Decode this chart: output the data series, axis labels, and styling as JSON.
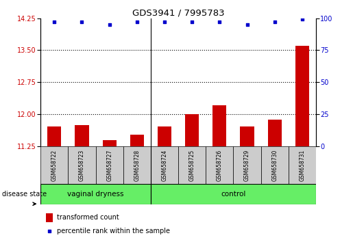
{
  "title": "GDS3941 / 7995783",
  "samples": [
    "GSM658722",
    "GSM658723",
    "GSM658727",
    "GSM658728",
    "GSM658724",
    "GSM658725",
    "GSM658726",
    "GSM658729",
    "GSM658730",
    "GSM658731"
  ],
  "bar_values": [
    11.72,
    11.75,
    11.4,
    11.53,
    11.72,
    12.0,
    12.22,
    11.72,
    11.88,
    13.6
  ],
  "dot_values": [
    97,
    97,
    95,
    97,
    97,
    97,
    97,
    95,
    97,
    99
  ],
  "ylim_left": [
    11.25,
    14.25
  ],
  "ylim_right": [
    0,
    100
  ],
  "yticks_left": [
    11.25,
    12.0,
    12.75,
    13.5,
    14.25
  ],
  "yticks_right": [
    0,
    25,
    50,
    75,
    100
  ],
  "dotted_lines": [
    12.0,
    12.75,
    13.5
  ],
  "bar_color": "#cc0000",
  "dot_color": "#0000cc",
  "group1_label": "vaginal dryness",
  "group2_label": "control",
  "group1_count": 4,
  "group2_count": 6,
  "disease_state_label": "disease state",
  "legend_bar_label": "transformed count",
  "legend_dot_label": "percentile rank within the sample",
  "group_bg_color": "#66ee66",
  "sample_bg_color": "#cccccc",
  "baseline": 11.25,
  "bar_width": 0.5
}
